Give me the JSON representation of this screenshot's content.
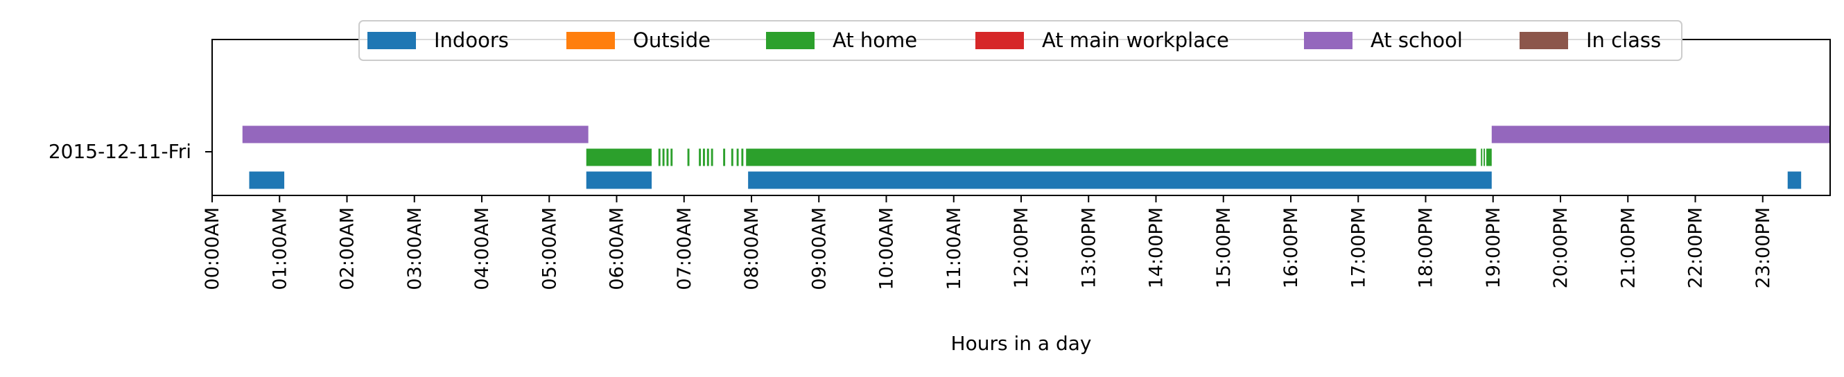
{
  "chart_data": {
    "type": "timeline",
    "title": "",
    "xlabel": "Hours in a day",
    "ylabel": "",
    "xlim": [
      0,
      24
    ],
    "grid": false,
    "legend": {
      "placement": "top-center",
      "entries": [
        {
          "name": "Indoors",
          "color": "#1f77b4"
        },
        {
          "name": "Outside",
          "color": "#ff7f0e"
        },
        {
          "name": "At home",
          "color": "#2ca02c"
        },
        {
          "name": "At main workplace",
          "color": "#d62728"
        },
        {
          "name": "At school",
          "color": "#9467bd"
        },
        {
          "name": "In class",
          "color": "#8c564b"
        }
      ]
    },
    "categories": [
      "2015-12-11-Fri"
    ],
    "x_ticks": [
      "00:00AM",
      "01:00AM",
      "02:00AM",
      "03:00AM",
      "04:00AM",
      "05:00AM",
      "06:00AM",
      "07:00AM",
      "08:00AM",
      "09:00AM",
      "10:00AM",
      "11:00AM",
      "12:00PM",
      "13:00PM",
      "14:00PM",
      "15:00PM",
      "16:00PM",
      "17:00PM",
      "18:00PM",
      "19:00PM",
      "20:00PM",
      "21:00PM",
      "22:00PM",
      "23:00PM"
    ],
    "series": [
      {
        "name": "At school",
        "color": "#9467bd",
        "lane": 1,
        "segments": [
          [
            0.45,
            5.58
          ],
          [
            18.98,
            24.0
          ]
        ]
      },
      {
        "name": "At home",
        "color": "#2ca02c",
        "lane": 0,
        "segments": [
          [
            5.55,
            6.52
          ],
          [
            6.62,
            6.65
          ],
          [
            6.68,
            6.71
          ],
          [
            6.74,
            6.77
          ],
          [
            6.8,
            6.83
          ],
          [
            7.05,
            7.08
          ],
          [
            7.22,
            7.25
          ],
          [
            7.28,
            7.31
          ],
          [
            7.34,
            7.37
          ],
          [
            7.4,
            7.43
          ],
          [
            7.58,
            7.61
          ],
          [
            7.7,
            7.73
          ],
          [
            7.78,
            7.81
          ],
          [
            7.85,
            7.88
          ],
          [
            7.92,
            18.75
          ],
          [
            18.82,
            18.84
          ],
          [
            18.86,
            18.88
          ],
          [
            18.9,
            18.98
          ]
        ]
      },
      {
        "name": "Indoors",
        "color": "#1f77b4",
        "lane": -1,
        "segments": [
          [
            0.55,
            1.07
          ],
          [
            5.55,
            6.52
          ],
          [
            7.95,
            18.98
          ],
          [
            23.37,
            23.57
          ]
        ]
      }
    ]
  }
}
